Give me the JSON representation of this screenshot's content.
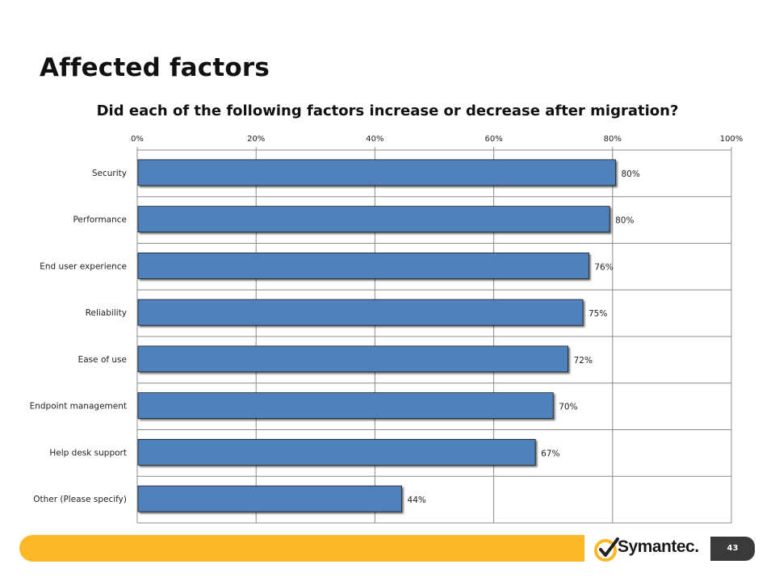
{
  "slide": {
    "title": "Affected factors",
    "page_number": "43",
    "brand": "Symantec."
  },
  "colors": {
    "bar": "#4f81bd",
    "footer": "#fdb827",
    "accent_check": "#fdb827"
  },
  "chart_data": {
    "type": "bar",
    "orientation": "horizontal",
    "title": "Did each of the following factors increase or decrease after migration?",
    "categories": [
      "Security",
      "Performance",
      "End user experience",
      "Reliability",
      "Ease of use",
      "Endpoint management",
      "Help desk support",
      "Other (Please specify)"
    ],
    "values": [
      80,
      80,
      76,
      75,
      72,
      70,
      67,
      44
    ],
    "plot_values": [
      80.5,
      79.5,
      76,
      75,
      72.5,
      70,
      67,
      44.5
    ],
    "data_labels": [
      "80%",
      "80%",
      "76%",
      "75%",
      "72%",
      "70%",
      "67%",
      "44%"
    ],
    "x_ticks": [
      "0%",
      "20%",
      "40%",
      "60%",
      "80%",
      "100%"
    ],
    "xlim": [
      0,
      100
    ],
    "grid": true,
    "legend": "none"
  }
}
